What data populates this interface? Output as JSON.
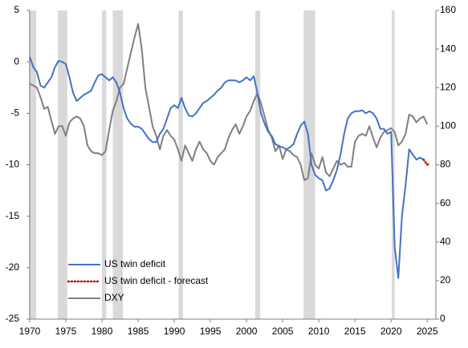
{
  "chart_data": {
    "type": "line",
    "xlim": [
      1970,
      2026.2
    ],
    "xticks": [
      1970,
      1975,
      1980,
      1985,
      1990,
      1995,
      2000,
      2005,
      2010,
      2015,
      2020,
      2025
    ],
    "ylim": [
      -25,
      5
    ],
    "yticks": [
      -25,
      -20,
      -15,
      -10,
      -5,
      0,
      5
    ],
    "y2lim": [
      0,
      160
    ],
    "y2ticks": [
      0,
      20,
      40,
      60,
      80,
      100,
      120,
      140,
      160
    ],
    "shaded_periods": [
      [
        1969.9,
        1970.9
      ],
      [
        1973.9,
        1975.2
      ],
      [
        1980.0,
        1980.6
      ],
      [
        1981.5,
        1982.9
      ],
      [
        1990.6,
        1991.2
      ],
      [
        2001.2,
        2001.9
      ],
      [
        2007.9,
        2009.5
      ],
      [
        2020.1,
        2020.5
      ]
    ],
    "shade_color": "#d9d9d9",
    "legend": "lower left",
    "x": [
      1970,
      1970.5,
      1971,
      1971.5,
      1972,
      1972.5,
      1973,
      1973.5,
      1974,
      1974.5,
      1975,
      1975.5,
      1976,
      1976.5,
      1977,
      1977.5,
      1978,
      1978.5,
      1979,
      1979.5,
      1980,
      1980.5,
      1981,
      1981.5,
      1982,
      1982.5,
      1983,
      1983.5,
      1984,
      1984.5,
      1985,
      1985.5,
      1986,
      1986.5,
      1987,
      1987.5,
      1988,
      1988.5,
      1989,
      1989.5,
      1990,
      1990.5,
      1991,
      1991.5,
      1992,
      1992.5,
      1993,
      1993.5,
      1994,
      1994.5,
      1995,
      1995.5,
      1996,
      1996.5,
      1997,
      1997.5,
      1998,
      1998.5,
      1999,
      1999.5,
      2000,
      2000.5,
      2001,
      2001.5,
      2002,
      2002.5,
      2003,
      2003.5,
      2004,
      2004.5,
      2005,
      2005.5,
      2006,
      2006.5,
      2007,
      2007.5,
      2008,
      2008.5,
      2009,
      2009.5,
      2010,
      2010.5,
      2011,
      2011.5,
      2012,
      2012.5,
      2013,
      2013.5,
      2014,
      2014.5,
      2015,
      2015.5,
      2016,
      2016.5,
      2017,
      2017.5,
      2018,
      2018.5,
      2019,
      2019.5,
      2020,
      2020.5,
      2021,
      2021.5,
      2022,
      2022.5,
      2023,
      2023.5,
      2024,
      2024.5,
      2025,
      2025.5
    ],
    "series": [
      {
        "name": "US twin deficit",
        "color": "#4472c4",
        "dash": false,
        "values": [
          0.5,
          -0.5,
          -1,
          -2.3,
          -2.5,
          -2,
          -1.5,
          -0.5,
          0.1,
          0,
          -0.2,
          -1.5,
          -3,
          -3.8,
          -3.5,
          -3.2,
          -3,
          -2.8,
          -2,
          -1.3,
          -1.2,
          -1.5,
          -1.8,
          -1.5,
          -2,
          -3,
          -4.5,
          -5.5,
          -6,
          -6.3,
          -6.3,
          -6.5,
          -7,
          -7.5,
          -7.8,
          -7.8,
          -7,
          -6.5,
          -5.5,
          -4.5,
          -4.2,
          -4.5,
          -3.5,
          -4.5,
          -5.2,
          -5.3,
          -5,
          -4.5,
          -4,
          -3.8,
          -3.5,
          -3.2,
          -2.8,
          -2.5,
          -2,
          -1.8,
          -1.8,
          -1.8,
          -2,
          -1.8,
          -1.5,
          -1.8,
          -1.4,
          -3,
          -5,
          -6,
          -6.8,
          -7.2,
          -8,
          -8.2,
          -8.3,
          -8.5,
          -8.3,
          -8,
          -7,
          -6.2,
          -5.8,
          -7,
          -10,
          -11,
          -11.3,
          -11.5,
          -12.5,
          -12.3,
          -11.5,
          -10.5,
          -9,
          -7,
          -5.5,
          -5,
          -4.8,
          -4.8,
          -4.7,
          -5,
          -4.8,
          -5,
          -5.5,
          -6.5,
          -6.5,
          -7,
          -6.8,
          -18,
          -21,
          -15,
          -12,
          -8.5,
          -9,
          -9.5,
          -9.3,
          -9.5,
          null,
          null
        ]
      },
      {
        "name": "US twin deficit - forecast",
        "color": "#c00000",
        "dash": true,
        "x": [
          2024.5,
          2025,
          2025.3
        ],
        "values": [
          -9.5,
          -10,
          -9.9
        ]
      },
      {
        "name": "DXY",
        "color": "#7f7f7f",
        "dash": false,
        "axis": "y2",
        "values": [
          122,
          121,
          120,
          115,
          109,
          110,
          103,
          96,
          100,
          100,
          95,
          102,
          104,
          105,
          104,
          100,
          90,
          87,
          86,
          86,
          85,
          87,
          98,
          108,
          113,
          120,
          122,
          130,
          138,
          146,
          153,
          140,
          120,
          110,
          100,
          95,
          88,
          95,
          98,
          95,
          93,
          88,
          82,
          90,
          86,
          82,
          88,
          92,
          88,
          86,
          82,
          80,
          84,
          86,
          88,
          94,
          98,
          101,
          96,
          100,
          105,
          108,
          113,
          117,
          112,
          105,
          98,
          94,
          87,
          90,
          83,
          88,
          87,
          85,
          84,
          80,
          72,
          73,
          86,
          80,
          78,
          84,
          76,
          74,
          78,
          82,
          80,
          81,
          79,
          79,
          92,
          95,
          96,
          95,
          100,
          94,
          89,
          94,
          97,
          98,
          99,
          97,
          90,
          92,
          96,
          106,
          105,
          102,
          104,
          105,
          101,
          null
        ]
      }
    ]
  }
}
